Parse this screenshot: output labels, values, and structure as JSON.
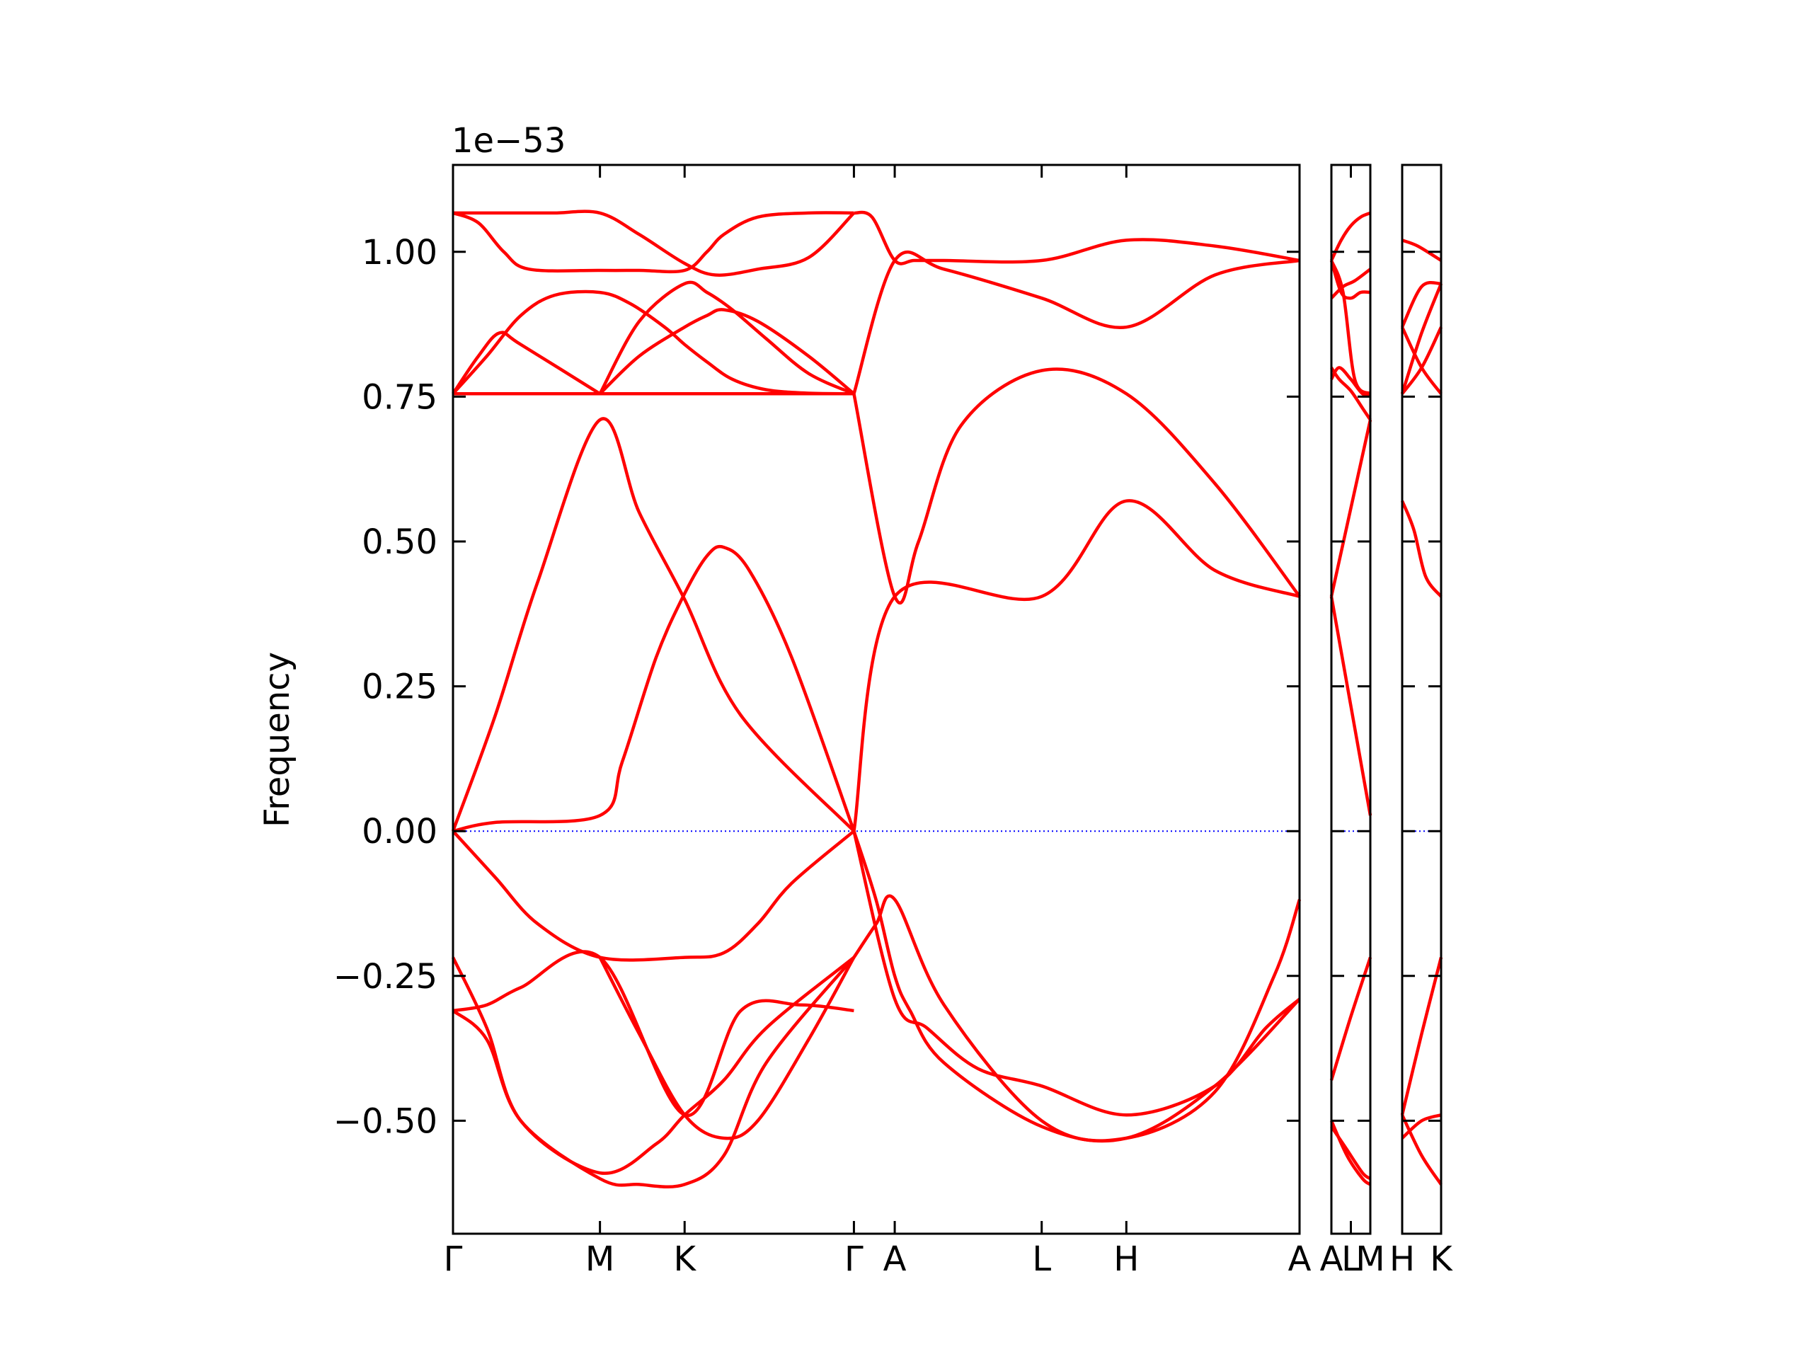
{
  "chart_data": {
    "type": "line",
    "title": "",
    "ylabel": "Frequency",
    "xlabel": "",
    "offset_label": "1e−53",
    "ylim": [
      -0.695,
      1.15
    ],
    "yticks": [
      -0.5,
      -0.25,
      0.0,
      0.25,
      0.5,
      0.75,
      1.0
    ],
    "ytick_labels": [
      "−0.50",
      "−0.25",
      "0.00",
      "0.25",
      "0.50",
      "0.75",
      "1.00"
    ],
    "colors": {
      "bands": "#ff0000",
      "zero_line": "#0000ff"
    },
    "panels": [
      {
        "labels": [
          "Γ",
          "M",
          "K",
          "Γ",
          "A",
          "L",
          "H",
          "A"
        ],
        "x": [
          0,
          0.1736,
          0.2736,
          0.4736,
          0.5218,
          0.6954,
          0.7954,
          1.0
        ],
        "bands": [
          {
            "x": [
              0,
              0.04,
              0.08,
              0.12,
              0.1736,
              0.22,
              0.2736,
              0.31,
              0.36,
              0.42,
              0.4736
            ],
            "y": [
              1.067,
              1.067,
              1.067,
              1.067,
              1.067,
              1.03,
              0.98,
              0.96,
              0.97,
              0.99,
              1.067
            ]
          },
          {
            "x": [
              0,
              0.03,
              0.06,
              0.09,
              0.1736,
              0.22,
              0.2736,
              0.3,
              0.32,
              0.36,
              0.42,
              0.4736
            ],
            "y": [
              1.067,
              1.05,
              1.0,
              0.97,
              0.968,
              0.968,
              0.968,
              1.0,
              1.03,
              1.06,
              1.067,
              1.067
            ]
          },
          {
            "x": [
              0,
              0.04,
              0.08,
              0.12,
              0.1736,
              0.21,
              0.25,
              0.2736,
              0.3,
              0.33,
              0.37,
              0.42,
              0.4736
            ],
            "y": [
              0.755,
              0.82,
              0.89,
              0.925,
              0.93,
              0.91,
              0.87,
              0.84,
              0.81,
              0.78,
              0.762,
              0.756,
              0.755
            ]
          },
          {
            "x": [
              0,
              0.03,
              0.055,
              0.08,
              0.1736
            ],
            "y": [
              0.755,
              0.82,
              0.86,
              0.84,
              0.755
            ]
          },
          {
            "x": [
              0.1736,
              0.22,
              0.2736,
              0.3,
              0.33,
              0.37,
              0.42,
              0.4736
            ],
            "y": [
              0.755,
              0.88,
              0.945,
              0.93,
              0.9,
              0.85,
              0.79,
              0.755
            ]
          },
          {
            "x": [
              0.1736,
              0.22,
              0.2736,
              0.3,
              0.32,
              0.36,
              0.42,
              0.4736
            ],
            "y": [
              0.755,
              0.82,
              0.87,
              0.89,
              0.9,
              0.88,
              0.82,
              0.755
            ]
          },
          {
            "x": [
              0,
              0.1736,
              0.2736,
              0.4736
            ],
            "y": [
              0.755,
              0.755,
              0.755,
              0.755
            ]
          },
          {
            "x": [
              0,
              0.05,
              0.1,
              0.1736,
              0.22,
              0.2736,
              0.34,
              0.4736
            ],
            "y": [
              0.0,
              0.2,
              0.43,
              0.71,
              0.55,
              0.4,
              0.2,
              0.0
            ]
          },
          {
            "x": [
              0,
              0.05,
              0.1736,
              0.2,
              0.24,
              0.2736,
              0.3,
              0.32,
              0.35,
              0.4,
              0.4736
            ],
            "y": [
              0.0,
              0.015,
              0.027,
              0.12,
              0.3,
              0.41,
              0.475,
              0.49,
              0.45,
              0.3,
              0.0
            ]
          },
          {
            "x": [
              0,
              0.05,
              0.1,
              0.1736,
              0.2736,
              0.32,
              0.36,
              0.4,
              0.4736
            ],
            "y": [
              0.0,
              -0.08,
              -0.16,
              -0.218,
              -0.218,
              -0.21,
              -0.16,
              -0.09,
              0.0
            ]
          },
          {
            "x": [
              0,
              0.04,
              0.08,
              0.1736,
              0.2736,
              0.34,
              0.41,
              0.4736
            ],
            "y": [
              -0.31,
              -0.3,
              -0.27,
              -0.218,
              -0.49,
              -0.31,
              -0.3,
              -0.31
            ]
          },
          {
            "x": [
              0,
              0.04,
              0.08,
              0.1736,
              0.24,
              0.2736,
              0.32,
              0.37,
              0.4736
            ],
            "y": [
              -0.218,
              -0.34,
              -0.5,
              -0.59,
              -0.54,
              -0.49,
              -0.43,
              -0.34,
              -0.218
            ]
          },
          {
            "x": [
              0,
              0.04,
              0.08,
              0.1736,
              0.22,
              0.2736,
              0.32,
              0.37,
              0.4736
            ],
            "y": [
              -0.31,
              -0.36,
              -0.5,
              -0.6,
              -0.61,
              -0.61,
              -0.56,
              -0.4,
              -0.218
            ]
          },
          {
            "x": [
              0.1736,
              0.22,
              0.2736,
              0.32,
              0.36,
              0.42,
              0.4736
            ],
            "y": [
              -0.218,
              -0.35,
              -0.49,
              -0.53,
              -0.5,
              -0.36,
              -0.218
            ]
          },
          {
            "x": [
              0.4736,
              0.495,
              0.5218,
              0.545,
              0.58,
              0.6954,
              0.7954,
              0.9,
              1.0
            ],
            "y": [
              1.067,
              1.06,
              0.985,
              0.985,
              0.985,
              0.985,
              1.02,
              1.01,
              0.985
            ]
          },
          {
            "x": [
              0.4736,
              0.5218,
              0.58,
              0.6954,
              0.7954,
              0.9,
              1.0
            ],
            "y": [
              0.755,
              0.985,
              0.97,
              0.92,
              0.87,
              0.96,
              0.985
            ]
          },
          {
            "x": [
              0.4736,
              0.5218,
              0.55,
              0.6,
              0.6954,
              0.7954,
              0.9,
              1.0
            ],
            "y": [
              0.755,
              0.405,
              0.5,
              0.7,
              0.795,
              0.755,
              0.6,
              0.405
            ]
          },
          {
            "x": [
              0.4736,
              0.5218,
              0.6954,
              0.7954,
              0.9,
              1.0
            ],
            "y": [
              0.0,
              0.405,
              0.405,
              0.57,
              0.45,
              0.405
            ]
          },
          {
            "x": [
              0.4736,
              0.5,
              0.5218,
              0.54,
              0.58,
              0.6954,
              0.7954,
              0.9,
              1.0
            ],
            "y": [
              0.0,
              -0.12,
              -0.25,
              -0.31,
              -0.4,
              -0.51,
              -0.53,
              -0.44,
              -0.29
            ]
          },
          {
            "x": [
              0.4736,
              0.5218,
              0.56,
              0.62,
              0.6954,
              0.7954,
              0.9,
              0.96,
              1.0
            ],
            "y": [
              0.0,
              -0.29,
              -0.34,
              -0.41,
              -0.44,
              -0.49,
              -0.44,
              -0.34,
              -0.29
            ]
          },
          {
            "x": [
              0.4736,
              0.5,
              0.5218,
              0.58,
              0.6954,
              0.7954,
              0.9,
              0.97,
              1.0
            ],
            "y": [
              -0.218,
              -0.16,
              -0.118,
              -0.3,
              -0.5,
              -0.53,
              -0.45,
              -0.25,
              -0.118
            ]
          }
        ]
      },
      {
        "labels": [
          "A",
          "L",
          "M"
        ],
        "x": [
          0,
          0.5,
          1.0
        ],
        "bands": [
          {
            "x": [
              0,
              0.25,
              0.5,
              0.75,
              1.0
            ],
            "y": [
              0.985,
              1.02,
              1.045,
              1.06,
              1.067
            ]
          },
          {
            "x": [
              0,
              0.25,
              0.5,
              0.75,
              1.0
            ],
            "y": [
              0.985,
              0.93,
              0.92,
              0.93,
              0.93
            ]
          },
          {
            "x": [
              0,
              0.3,
              0.6,
              1.0
            ],
            "y": [
              0.985,
              0.93,
              0.78,
              0.755
            ]
          },
          {
            "x": [
              0,
              0.3,
              0.6,
              1.0
            ],
            "y": [
              0.92,
              0.94,
              0.95,
              0.97
            ]
          },
          {
            "x": [
              0,
              0.2,
              0.5,
              0.8,
              1.0
            ],
            "y": [
              0.8,
              0.78,
              0.76,
              0.73,
              0.71
            ]
          },
          {
            "x": [
              0,
              0.2,
              0.5,
              0.8,
              1.0
            ],
            "y": [
              0.78,
              0.8,
              0.78,
              0.755,
              0.755
            ]
          },
          {
            "x": [
              0,
              1.0
            ],
            "y": [
              0.405,
              0.027
            ]
          },
          {
            "x": [
              0,
              1.0
            ],
            "y": [
              0.405,
              0.71
            ]
          },
          {
            "x": [
              0,
              0.5,
              1.0
            ],
            "y": [
              -0.43,
              -0.32,
              -0.218
            ]
          },
          {
            "x": [
              0,
              0.4,
              0.8,
              1.0
            ],
            "y": [
              -0.51,
              -0.55,
              -0.59,
              -0.6
            ]
          },
          {
            "x": [
              0,
              0.4,
              0.8,
              1.0
            ],
            "y": [
              -0.5,
              -0.56,
              -0.6,
              -0.61
            ]
          }
        ]
      },
      {
        "labels": [
          "H",
          "K"
        ],
        "x": [
          0,
          1.0
        ],
        "bands": [
          {
            "x": [
              0,
              0.4,
              1.0
            ],
            "y": [
              1.02,
              1.01,
              0.985
            ]
          },
          {
            "x": [
              0,
              0.5,
              1.0
            ],
            "y": [
              0.87,
              0.8,
              0.755
            ]
          },
          {
            "x": [
              0,
              0.5,
              1.0
            ],
            "y": [
              0.755,
              0.86,
              0.945
            ]
          },
          {
            "x": [
              0,
              0.5,
              1.0
            ],
            "y": [
              0.87,
              0.94,
              0.945
            ]
          },
          {
            "x": [
              0,
              0.5,
              1.0
            ],
            "y": [
              0.755,
              0.8,
              0.87
            ]
          },
          {
            "x": [
              0,
              0.3,
              0.6,
              1.0
            ],
            "y": [
              0.57,
              0.52,
              0.44,
              0.405
            ]
          },
          {
            "x": [
              0,
              0.5,
              1.0
            ],
            "y": [
              -0.49,
              -0.35,
              -0.218
            ]
          },
          {
            "x": [
              0,
              0.5,
              1.0
            ],
            "y": [
              -0.53,
              -0.5,
              -0.49
            ]
          },
          {
            "x": [
              0,
              0.5,
              1.0
            ],
            "y": [
              -0.49,
              -0.56,
              -0.61
            ]
          }
        ]
      }
    ]
  }
}
